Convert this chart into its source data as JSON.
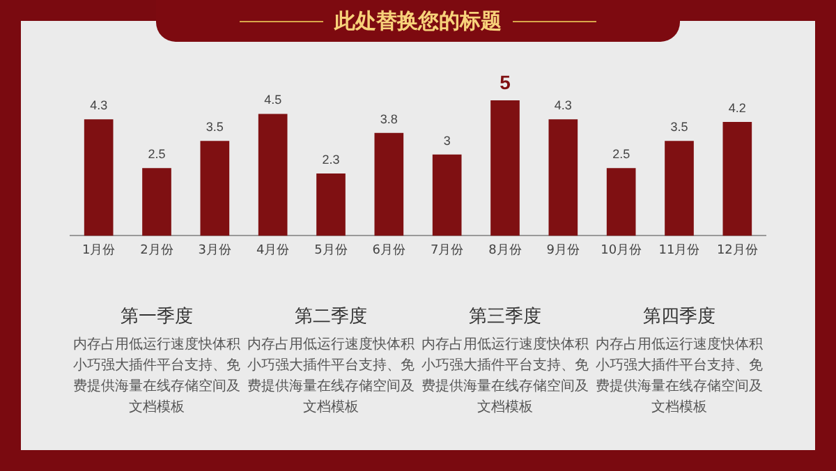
{
  "chart_data": {
    "type": "bar",
    "title": "此处替换您的标题",
    "categories": [
      "1月份",
      "2月份",
      "3月份",
      "4月份",
      "5月份",
      "6月份",
      "7月份",
      "8月份",
      "9月份",
      "10月份",
      "11月份",
      "12月份"
    ],
    "values": [
      4.3,
      2.5,
      3.5,
      4.5,
      2.3,
      3.8,
      3,
      5,
      4.3,
      2.5,
      3.5,
      4.2
    ],
    "color": "#7f1012",
    "data_labels": true,
    "grid": false,
    "legend": false,
    "annotations": [
      "第一季度",
      "内存占用低运行速度快体积小巧强大插件平台支持、免费提供海量在线存储空间及文档模板",
      "第二季度",
      "内存占用低运行速度快体积小巧强大插件平台支持、免费提供海量在线存储空间及文档模板",
      "第三季度",
      "内存占用低运行速度快体积小巧强大插件平台支持、免费提供海量在线存储空间及文档模板",
      "第四季度",
      "内存占用低运行速度快体积小巧强大插件平台支持、免费提供海量在线存储空间及文档模板"
    ]
  }
}
